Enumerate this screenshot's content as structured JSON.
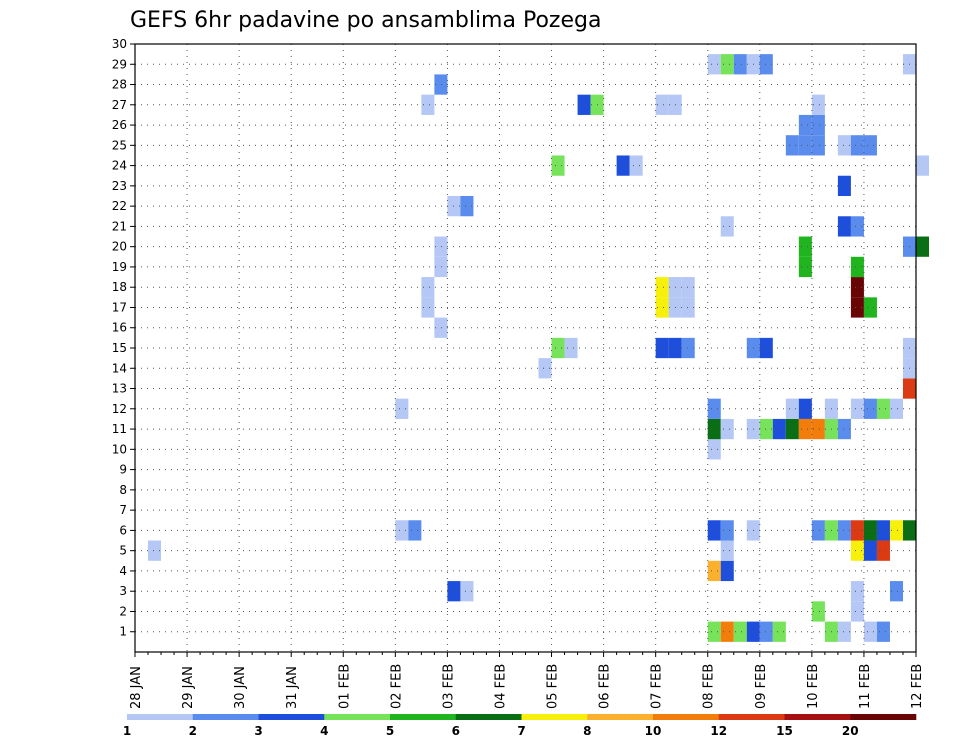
{
  "chart_data": {
    "type": "heatmap",
    "title": "GEFS 6hr padavine po ansamblima Pozega",
    "xlabel": "",
    "ylabel": "",
    "x_tick_labels": [
      "28 JAN",
      "29 JAN",
      "30 JAN",
      "31 JAN",
      "01 FEB",
      "02 FEB",
      "03 FEB",
      "04 FEB",
      "05 FEB",
      "06 FEB",
      "07 FEB",
      "08 FEB",
      "09 FEB",
      "10 FEB",
      "11 FEB",
      "12 FEB"
    ],
    "y_tick_labels": [
      "1",
      "2",
      "3",
      "4",
      "5",
      "6",
      "7",
      "8",
      "9",
      "10",
      "11",
      "12",
      "13",
      "14",
      "15",
      "16",
      "17",
      "18",
      "19",
      "20",
      "21",
      "22",
      "23",
      "24",
      "25",
      "26",
      "27",
      "28",
      "29",
      "30"
    ],
    "xlim_days": [
      0,
      15
    ],
    "ylim": [
      0,
      30
    ],
    "grid": true,
    "colorbar": {
      "colors": [
        "#b4c7f5",
        "#5a8ced",
        "#1e4fdc",
        "#76e35a",
        "#20b51e",
        "#0a6e14",
        "#f7f00b",
        "#fbb12d",
        "#f27d0b",
        "#dc3a12",
        "#a61010",
        "#6a0505"
      ],
      "labels": [
        "1",
        "2",
        "3",
        "4",
        "5",
        "6",
        "7",
        "8",
        "10",
        "12",
        "15",
        "20"
      ]
    },
    "cells": [
      {
        "member": 1,
        "day": 11.0,
        "cat": 4
      },
      {
        "member": 1,
        "day": 11.25,
        "cat": 9
      },
      {
        "member": 1,
        "day": 11.5,
        "cat": 4
      },
      {
        "member": 1,
        "day": 11.75,
        "cat": 3
      },
      {
        "member": 1,
        "day": 12.0,
        "cat": 2
      },
      {
        "member": 1,
        "day": 12.25,
        "cat": 4
      },
      {
        "member": 1,
        "day": 13.25,
        "cat": 4
      },
      {
        "member": 1,
        "day": 13.5,
        "cat": 1
      },
      {
        "member": 1,
        "day": 14.0,
        "cat": 1
      },
      {
        "member": 1,
        "day": 14.25,
        "cat": 2
      },
      {
        "member": 2,
        "day": 13.0,
        "cat": 4
      },
      {
        "member": 2,
        "day": 13.75,
        "cat": 1
      },
      {
        "member": 3,
        "day": 6.0,
        "cat": 3
      },
      {
        "member": 3,
        "day": 6.25,
        "cat": 1
      },
      {
        "member": 3,
        "day": 13.75,
        "cat": 1
      },
      {
        "member": 3,
        "day": 14.5,
        "cat": 2
      },
      {
        "member": 4,
        "day": 11.0,
        "cat": 8
      },
      {
        "member": 4,
        "day": 11.25,
        "cat": 3
      },
      {
        "member": 5,
        "day": 0.25,
        "cat": 1
      },
      {
        "member": 5,
        "day": 11.25,
        "cat": 1
      },
      {
        "member": 5,
        "day": 13.75,
        "cat": 7
      },
      {
        "member": 5,
        "day": 14.0,
        "cat": 3
      },
      {
        "member": 5,
        "day": 14.25,
        "cat": 10
      },
      {
        "member": 6,
        "day": 5.0,
        "cat": 1
      },
      {
        "member": 6,
        "day": 5.25,
        "cat": 2
      },
      {
        "member": 6,
        "day": 11.0,
        "cat": 3
      },
      {
        "member": 6,
        "day": 11.25,
        "cat": 2
      },
      {
        "member": 6,
        "day": 11.75,
        "cat": 1
      },
      {
        "member": 6,
        "day": 13.0,
        "cat": 2
      },
      {
        "member": 6,
        "day": 13.25,
        "cat": 4
      },
      {
        "member": 6,
        "day": 13.5,
        "cat": 2
      },
      {
        "member": 6,
        "day": 13.75,
        "cat": 10
      },
      {
        "member": 6,
        "day": 14.0,
        "cat": 6
      },
      {
        "member": 6,
        "day": 14.25,
        "cat": 3
      },
      {
        "member": 6,
        "day": 14.5,
        "cat": 7
      },
      {
        "member": 6,
        "day": 14.75,
        "cat": 6
      },
      {
        "member": 10,
        "day": 11.0,
        "cat": 1
      },
      {
        "member": 11,
        "day": 11.0,
        "cat": 6
      },
      {
        "member": 11,
        "day": 11.25,
        "cat": 1
      },
      {
        "member": 11,
        "day": 11.75,
        "cat": 1
      },
      {
        "member": 11,
        "day": 12.0,
        "cat": 4
      },
      {
        "member": 11,
        "day": 12.25,
        "cat": 3
      },
      {
        "member": 11,
        "day": 12.5,
        "cat": 6
      },
      {
        "member": 11,
        "day": 12.75,
        "cat": 9
      },
      {
        "member": 11,
        "day": 13.0,
        "cat": 9
      },
      {
        "member": 11,
        "day": 13.25,
        "cat": 4
      },
      {
        "member": 11,
        "day": 13.5,
        "cat": 2
      },
      {
        "member": 12,
        "day": 5.0,
        "cat": 1
      },
      {
        "member": 12,
        "day": 11.0,
        "cat": 2
      },
      {
        "member": 12,
        "day": 12.5,
        "cat": 1
      },
      {
        "member": 12,
        "day": 12.75,
        "cat": 3
      },
      {
        "member": 12,
        "day": 13.25,
        "cat": 1
      },
      {
        "member": 12,
        "day": 13.75,
        "cat": 1
      },
      {
        "member": 12,
        "day": 14.0,
        "cat": 2
      },
      {
        "member": 12,
        "day": 14.25,
        "cat": 4
      },
      {
        "member": 12,
        "day": 14.5,
        "cat": 1
      },
      {
        "member": 13,
        "day": 14.75,
        "cat": 10
      },
      {
        "member": 14,
        "day": 7.75,
        "cat": 1
      },
      {
        "member": 14,
        "day": 14.75,
        "cat": 1
      },
      {
        "member": 15,
        "day": 8.0,
        "cat": 4
      },
      {
        "member": 15,
        "day": 8.25,
        "cat": 1
      },
      {
        "member": 15,
        "day": 10.0,
        "cat": 3
      },
      {
        "member": 15,
        "day": 10.25,
        "cat": 3
      },
      {
        "member": 15,
        "day": 10.5,
        "cat": 2
      },
      {
        "member": 15,
        "day": 11.75,
        "cat": 2
      },
      {
        "member": 15,
        "day": 12.0,
        "cat": 3
      },
      {
        "member": 15,
        "day": 14.75,
        "cat": 1
      },
      {
        "member": 16,
        "day": 5.75,
        "cat": 1
      },
      {
        "member": 17,
        "day": 5.5,
        "cat": 1
      },
      {
        "member": 17,
        "day": 10.0,
        "cat": 7
      },
      {
        "member": 17,
        "day": 10.25,
        "cat": 1
      },
      {
        "member": 17,
        "day": 10.5,
        "cat": 1
      },
      {
        "member": 17,
        "day": 13.75,
        "cat": 12
      },
      {
        "member": 17,
        "day": 14.0,
        "cat": 5
      },
      {
        "member": 18,
        "day": 5.5,
        "cat": 1
      },
      {
        "member": 18,
        "day": 10.0,
        "cat": 7
      },
      {
        "member": 18,
        "day": 10.25,
        "cat": 1
      },
      {
        "member": 18,
        "day": 10.5,
        "cat": 1
      },
      {
        "member": 18,
        "day": 13.75,
        "cat": 12
      },
      {
        "member": 19,
        "day": 5.75,
        "cat": 1
      },
      {
        "member": 19,
        "day": 12.75,
        "cat": 5
      },
      {
        "member": 19,
        "day": 13.75,
        "cat": 5
      },
      {
        "member": 20,
        "day": 5.75,
        "cat": 1
      },
      {
        "member": 20,
        "day": 12.75,
        "cat": 5
      },
      {
        "member": 20,
        "day": 14.75,
        "cat": 2
      },
      {
        "member": 20,
        "day": 15.0,
        "cat": 6
      },
      {
        "member": 21,
        "day": 11.25,
        "cat": 1
      },
      {
        "member": 21,
        "day": 13.5,
        "cat": 3
      },
      {
        "member": 21,
        "day": 13.75,
        "cat": 2
      },
      {
        "member": 22,
        "day": 6.0,
        "cat": 1
      },
      {
        "member": 22,
        "day": 6.25,
        "cat": 2
      },
      {
        "member": 23,
        "day": 13.5,
        "cat": 3
      },
      {
        "member": 24,
        "day": 8.0,
        "cat": 4
      },
      {
        "member": 24,
        "day": 9.25,
        "cat": 3
      },
      {
        "member": 24,
        "day": 9.5,
        "cat": 1
      },
      {
        "member": 24,
        "day": 15.0,
        "cat": 1
      },
      {
        "member": 25,
        "day": 12.5,
        "cat": 2
      },
      {
        "member": 25,
        "day": 12.75,
        "cat": 2
      },
      {
        "member": 25,
        "day": 13.0,
        "cat": 2
      },
      {
        "member": 25,
        "day": 13.5,
        "cat": 1
      },
      {
        "member": 25,
        "day": 13.75,
        "cat": 2
      },
      {
        "member": 25,
        "day": 14.0,
        "cat": 2
      },
      {
        "member": 26,
        "day": 12.75,
        "cat": 2
      },
      {
        "member": 26,
        "day": 13.0,
        "cat": 2
      },
      {
        "member": 27,
        "day": 5.5,
        "cat": 1
      },
      {
        "member": 27,
        "day": 8.5,
        "cat": 3
      },
      {
        "member": 27,
        "day": 8.75,
        "cat": 4
      },
      {
        "member": 27,
        "day": 10.0,
        "cat": 1
      },
      {
        "member": 27,
        "day": 10.25,
        "cat": 1
      },
      {
        "member": 27,
        "day": 13.0,
        "cat": 1
      },
      {
        "member": 28,
        "day": 5.75,
        "cat": 2
      },
      {
        "member": 29,
        "day": 11.0,
        "cat": 1
      },
      {
        "member": 29,
        "day": 11.25,
        "cat": 4
      },
      {
        "member": 29,
        "day": 11.5,
        "cat": 2
      },
      {
        "member": 29,
        "day": 11.75,
        "cat": 1
      },
      {
        "member": 29,
        "day": 12.0,
        "cat": 2
      },
      {
        "member": 29,
        "day": 14.75,
        "cat": 1
      }
    ]
  }
}
